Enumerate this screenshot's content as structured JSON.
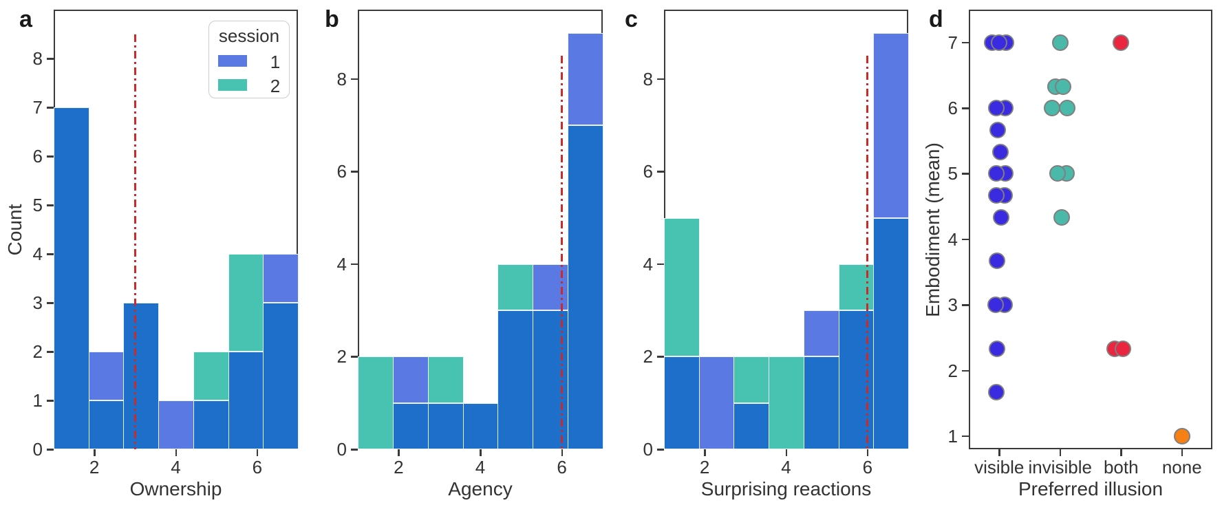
{
  "colors": {
    "session1": "#5b79e3",
    "session2": "#49c3b1",
    "overlap": "#1e6fca",
    "ref_line": "#cc2929",
    "dot_visible": "#3a2be0",
    "dot_invisible": "#4bb9a9",
    "dot_both": "#e92540",
    "dot_none": "#f68013",
    "axis": "#3a3a3a"
  },
  "chart_data": [
    {
      "panel_label": "a",
      "type": "bar",
      "subtype": "layered-histogram",
      "xlabel": "Ownership",
      "ylabel": "Count",
      "xlim": [
        1,
        7
      ],
      "ymax": 9.0,
      "xticks": [
        2,
        4,
        6
      ],
      "yticks": [
        0,
        1,
        2,
        3,
        4,
        5,
        6,
        7,
        8
      ],
      "bins": 7,
      "bin_edges": [
        1,
        1.857,
        2.714,
        3.571,
        4.429,
        5.286,
        6.143,
        7
      ],
      "ref_line": {
        "x": 3,
        "y_top": 8.5,
        "style": "dash-dot",
        "color_key": "ref_line"
      },
      "legend": {
        "title": "session",
        "items": [
          {
            "label": "1",
            "color_key": "session1"
          },
          {
            "label": "2",
            "color_key": "session2"
          }
        ]
      },
      "bars": [
        {
          "segments": [
            {
              "color_key": "overlap",
              "from": 0,
              "to": 7
            }
          ]
        },
        {
          "segments": [
            {
              "color_key": "overlap",
              "from": 0,
              "to": 1
            },
            {
              "color_key": "session1",
              "from": 1,
              "to": 2
            }
          ]
        },
        {
          "segments": [
            {
              "color_key": "overlap",
              "from": 0,
              "to": 3
            }
          ]
        },
        {
          "segments": [
            {
              "color_key": "session1",
              "from": 0,
              "to": 1
            }
          ]
        },
        {
          "segments": [
            {
              "color_key": "overlap",
              "from": 0,
              "to": 1
            },
            {
              "color_key": "session2",
              "from": 1,
              "to": 2
            }
          ]
        },
        {
          "segments": [
            {
              "color_key": "overlap",
              "from": 0,
              "to": 2
            },
            {
              "color_key": "session2",
              "from": 2,
              "to": 4
            }
          ]
        },
        {
          "segments": [
            {
              "color_key": "overlap",
              "from": 0,
              "to": 3
            },
            {
              "color_key": "session1",
              "from": 3,
              "to": 4
            }
          ]
        }
      ]
    },
    {
      "panel_label": "b",
      "type": "bar",
      "subtype": "layered-histogram",
      "xlabel": "Agency",
      "ylabel": "",
      "xlim": [
        1,
        7
      ],
      "ymax": 9.5,
      "xticks": [
        2,
        4,
        6
      ],
      "yticks": [
        0,
        2,
        4,
        6,
        8
      ],
      "bins": 7,
      "bin_edges": [
        1,
        1.857,
        2.714,
        3.571,
        4.429,
        5.286,
        6.143,
        7
      ],
      "ref_line": {
        "x": 6,
        "y_top": 8.5,
        "style": "dash-dot",
        "color_key": "ref_line"
      },
      "bars": [
        {
          "segments": [
            {
              "color_key": "session2",
              "from": 0,
              "to": 2
            }
          ]
        },
        {
          "segments": [
            {
              "color_key": "overlap",
              "from": 0,
              "to": 1
            },
            {
              "color_key": "session1",
              "from": 1,
              "to": 2
            }
          ]
        },
        {
          "segments": [
            {
              "color_key": "overlap",
              "from": 0,
              "to": 1
            },
            {
              "color_key": "session2",
              "from": 1,
              "to": 2
            }
          ]
        },
        {
          "segments": [
            {
              "color_key": "overlap",
              "from": 0,
              "to": 1
            }
          ]
        },
        {
          "segments": [
            {
              "color_key": "overlap",
              "from": 0,
              "to": 3
            },
            {
              "color_key": "session2",
              "from": 3,
              "to": 4
            }
          ]
        },
        {
          "segments": [
            {
              "color_key": "overlap",
              "from": 0,
              "to": 3
            },
            {
              "color_key": "session1",
              "from": 3,
              "to": 4
            }
          ]
        },
        {
          "segments": [
            {
              "color_key": "overlap",
              "from": 0,
              "to": 7
            },
            {
              "color_key": "session1",
              "from": 7,
              "to": 9
            }
          ]
        }
      ]
    },
    {
      "panel_label": "c",
      "type": "bar",
      "subtype": "layered-histogram",
      "xlabel": "Surprising reactions",
      "ylabel": "",
      "xlim": [
        1,
        7
      ],
      "ymax": 9.5,
      "xticks": [
        2,
        4,
        6
      ],
      "yticks": [
        0,
        2,
        4,
        6,
        8
      ],
      "bins": 7,
      "bin_edges": [
        1,
        1.857,
        2.714,
        3.571,
        4.429,
        5.286,
        6.143,
        7
      ],
      "ref_line": {
        "x": 6,
        "y_top": 8.5,
        "style": "dash-dot",
        "color_key": "ref_line"
      },
      "bars": [
        {
          "segments": [
            {
              "color_key": "overlap",
              "from": 0,
              "to": 2
            },
            {
              "color_key": "session2",
              "from": 2,
              "to": 5
            }
          ]
        },
        {
          "segments": [
            {
              "color_key": "session1",
              "from": 0,
              "to": 2
            }
          ]
        },
        {
          "segments": [
            {
              "color_key": "overlap",
              "from": 0,
              "to": 1
            },
            {
              "color_key": "session2",
              "from": 1,
              "to": 2
            }
          ]
        },
        {
          "segments": [
            {
              "color_key": "session2",
              "from": 0,
              "to": 2
            }
          ]
        },
        {
          "segments": [
            {
              "color_key": "overlap",
              "from": 0,
              "to": 2
            },
            {
              "color_key": "session1",
              "from": 2,
              "to": 3
            }
          ]
        },
        {
          "segments": [
            {
              "color_key": "overlap",
              "from": 0,
              "to": 3
            },
            {
              "color_key": "session2",
              "from": 3,
              "to": 4
            }
          ]
        },
        {
          "segments": [
            {
              "color_key": "overlap",
              "from": 0,
              "to": 5
            },
            {
              "color_key": "session1",
              "from": 5,
              "to": 9
            }
          ]
        }
      ]
    },
    {
      "panel_label": "d",
      "type": "scatter",
      "subtype": "categorical-strip",
      "xlabel": "Preferred illusion",
      "ylabel": "Embodiment (mean)",
      "categories": [
        "visible",
        "invisible",
        "both",
        "none"
      ],
      "ylim": [
        0.8,
        7.5
      ],
      "yticks": [
        1,
        2,
        3,
        4,
        5,
        6,
        7
      ],
      "series": [
        {
          "category": "visible",
          "color_key": "dot_visible",
          "points": [
            {
              "y": 7,
              "dx": -10
            },
            {
              "y": 7,
              "dx": 10
            },
            {
              "y": 7,
              "dx": 0
            },
            {
              "y": 6,
              "dx": 9
            },
            {
              "y": 6,
              "dx": -4
            },
            {
              "y": 5.67,
              "dx": -2
            },
            {
              "y": 5.33,
              "dx": 2
            },
            {
              "y": 5,
              "dx": 9
            },
            {
              "y": 5,
              "dx": -4
            },
            {
              "y": 4.67,
              "dx": 8
            },
            {
              "y": 4.67,
              "dx": -4
            },
            {
              "y": 4.33,
              "dx": 3
            },
            {
              "y": 3.67,
              "dx": -3
            },
            {
              "y": 3,
              "dx": 8
            },
            {
              "y": 3,
              "dx": -5
            },
            {
              "y": 2.33,
              "dx": -3
            },
            {
              "y": 1.67,
              "dx": -4
            }
          ]
        },
        {
          "category": "invisible",
          "color_key": "dot_invisible",
          "points": [
            {
              "y": 7,
              "dx": 0
            },
            {
              "y": 6.33,
              "dx": -7
            },
            {
              "y": 6.33,
              "dx": 4
            },
            {
              "y": 6,
              "dx": -12
            },
            {
              "y": 6,
              "dx": 10
            },
            {
              "y": 5,
              "dx": 9
            },
            {
              "y": 5,
              "dx": -4
            },
            {
              "y": 4.33,
              "dx": 2
            }
          ]
        },
        {
          "category": "both",
          "color_key": "dot_both",
          "points": [
            {
              "y": 7,
              "dx": 0
            },
            {
              "y": 2.33,
              "dx": -9
            },
            {
              "y": 2.33,
              "dx": 3
            }
          ]
        },
        {
          "category": "none",
          "color_key": "dot_none",
          "points": [
            {
              "y": 1,
              "dx": 0
            }
          ]
        }
      ]
    }
  ]
}
